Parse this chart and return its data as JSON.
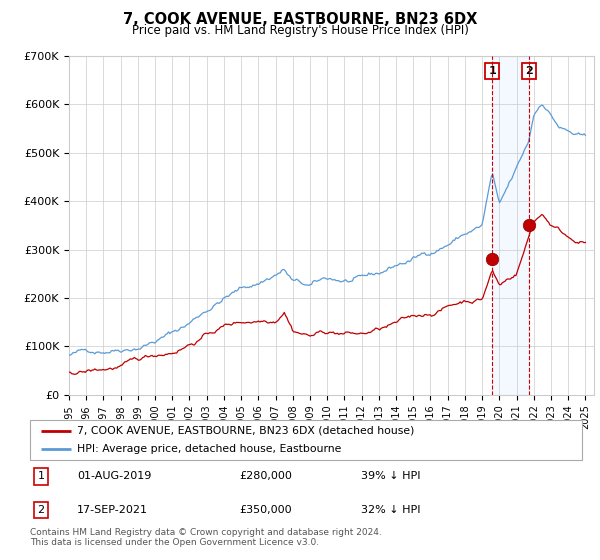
{
  "title": "7, COOK AVENUE, EASTBOURNE, BN23 6DX",
  "subtitle": "Price paid vs. HM Land Registry's House Price Index (HPI)",
  "ylabel_ticks": [
    "£0",
    "£100K",
    "£200K",
    "£300K",
    "£400K",
    "£500K",
    "£600K",
    "£700K"
  ],
  "ytick_values": [
    0,
    100000,
    200000,
    300000,
    400000,
    500000,
    600000,
    700000
  ],
  "ylim": [
    0,
    700000
  ],
  "hpi_color": "#5b9bd5",
  "price_color": "#c00000",
  "transaction1": {
    "date": "01-AUG-2019",
    "price": 280000,
    "pct": "39% ↓ HPI",
    "x": 2019.583
  },
  "transaction2": {
    "date": "17-SEP-2021",
    "price": 350000,
    "pct": "32% ↓ HPI",
    "x": 2021.708
  },
  "legend_label_red": "7, COOK AVENUE, EASTBOURNE, BN23 6DX (detached house)",
  "legend_label_blue": "HPI: Average price, detached house, Eastbourne",
  "footer": "Contains HM Land Registry data © Crown copyright and database right 2024.\nThis data is licensed under the Open Government Licence v3.0."
}
